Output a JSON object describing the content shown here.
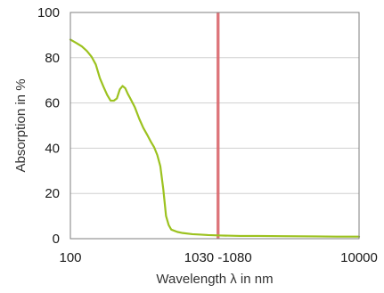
{
  "chart_data": {
    "type": "line",
    "xlabel": "Wavelength λ in nm",
    "ylabel": "Absorption in %",
    "x_scale": "log",
    "xlim": [
      100,
      10000
    ],
    "ylim": [
      0,
      100
    ],
    "x_ticks": [
      {
        "value": 100,
        "label": "100"
      },
      {
        "value": 10000,
        "label": "10000"
      }
    ],
    "y_ticks": [
      {
        "value": 0,
        "label": "0"
      },
      {
        "value": 20,
        "label": "20"
      },
      {
        "value": 40,
        "label": "40"
      },
      {
        "value": 60,
        "label": "60"
      },
      {
        "value": 80,
        "label": "80"
      },
      {
        "value": 100,
        "label": "100"
      }
    ],
    "grid": "horizontal",
    "highlight_band": {
      "label": "1030 -1080",
      "x_start": 1030,
      "x_end": 1080,
      "color": "#d9666b"
    },
    "series": [
      {
        "color": "#9cc21f",
        "x": [
          100,
          110,
          120,
          130,
          140,
          150,
          160,
          170,
          180,
          190,
          200,
          210,
          220,
          230,
          240,
          250,
          260,
          280,
          300,
          320,
          340,
          360,
          380,
          400,
          420,
          440,
          460,
          480,
          500,
          550,
          600,
          700,
          800,
          900,
          1000,
          1100,
          1300,
          1500,
          2000,
          3000,
          5000,
          7000,
          10000
        ],
        "y": [
          88,
          86.5,
          85,
          83,
          80.5,
          77,
          71,
          67,
          63.5,
          61,
          61,
          62,
          66,
          67.5,
          66.5,
          64,
          62,
          58,
          53,
          49,
          46,
          43,
          40.5,
          37,
          32,
          22,
          10,
          6,
          4,
          3,
          2.5,
          2,
          1.8,
          1.6,
          1.5,
          1.4,
          1.3,
          1.2,
          1.2,
          1.1,
          1.0,
          0.9,
          0.9
        ]
      }
    ]
  }
}
